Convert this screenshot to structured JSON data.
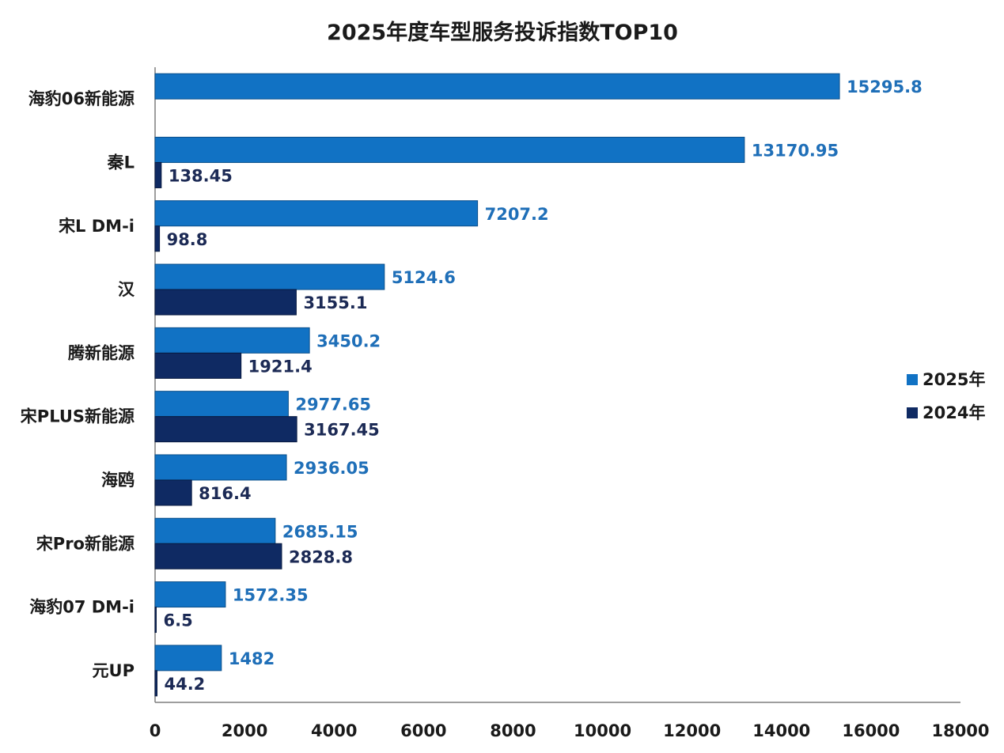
{
  "chart_data": {
    "type": "bar",
    "orientation": "horizontal",
    "title": "2025年度车型服务投诉指数TOP10",
    "xlabel": "",
    "ylabel": "",
    "xlim": [
      0,
      18000
    ],
    "x_ticks": [
      0,
      2000,
      4000,
      6000,
      8000,
      10000,
      12000,
      14000,
      16000,
      18000
    ],
    "grid": false,
    "legend_position": "right",
    "categories": [
      "海豹06新能源",
      "秦L",
      "宋L DM-i",
      "汉",
      "腾新能源",
      "宋PLUS新能源",
      "海鸥",
      "宋Pro新能源",
      "海豹07 DM-i",
      "元UP"
    ],
    "series": [
      {
        "name": "2025年",
        "color": "#1172C4",
        "values": [
          15295.8,
          13170.95,
          7207.2,
          5124.6,
          3450.2,
          2977.65,
          2936.05,
          2685.15,
          1572.35,
          1482
        ],
        "value_labels": [
          "15295.8",
          "13170.95",
          "7207.2",
          "5124.6",
          "3450.2",
          "2977.65",
          "2936.05",
          "2685.15",
          "1572.35",
          "1482"
        ]
      },
      {
        "name": "2024年",
        "color": "#0F2A63",
        "values": [
          null,
          138.45,
          98.8,
          3155.1,
          1921.4,
          3167.45,
          816.4,
          2828.8,
          6.5,
          44.2
        ],
        "value_labels": [
          null,
          "138.45",
          "98.8",
          "3155.1",
          "1921.4",
          "3167.45",
          "816.4",
          "2828.8",
          "6.5",
          "44.2"
        ]
      }
    ]
  }
}
